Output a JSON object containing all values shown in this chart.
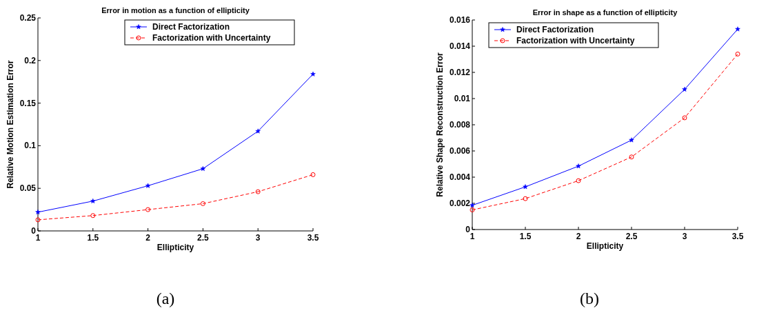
{
  "chart_data": [
    {
      "type": "line",
      "title": "Error in motion as a function of ellipticity",
      "xlabel": "Ellipticity",
      "ylabel": "Relative Motion Estimation Error",
      "x": [
        1,
        1.5,
        2,
        2.5,
        3,
        3.5
      ],
      "xlim": [
        1,
        3.5
      ],
      "xticks": [
        1,
        1.5,
        2,
        2.5,
        3,
        3.5
      ],
      "ylim": [
        0,
        0.25
      ],
      "yticks": [
        0,
        0.05,
        0.1,
        0.15,
        0.2,
        0.25
      ],
      "legend": "top right",
      "grid": false,
      "annotations": [
        "(a)"
      ],
      "series": [
        {
          "name": "Direct Factorization",
          "color": "#0000ff",
          "marker": "star",
          "line_style": "solid",
          "values": [
            0.022,
            0.035,
            0.053,
            0.073,
            0.117,
            0.184
          ]
        },
        {
          "name": "Factorization with Uncertainty",
          "color": "#ff0000",
          "marker": "circle",
          "line_style": "dashed",
          "values": [
            0.013,
            0.018,
            0.025,
            0.032,
            0.046,
            0.066
          ]
        }
      ]
    },
    {
      "type": "line",
      "title": "Error in shape as a function of ellipticity",
      "xlabel": "Ellipticity",
      "ylabel": "Relative Shape Reconstruction Error",
      "x": [
        1,
        1.5,
        2,
        2.5,
        3,
        3.5
      ],
      "xlim": [
        1,
        3.5
      ],
      "xticks": [
        1,
        1.5,
        2,
        2.5,
        3,
        3.5
      ],
      "ylim": [
        0,
        0.016
      ],
      "yticks": [
        0,
        0.002,
        0.004,
        0.006,
        0.008,
        0.01,
        0.012,
        0.014,
        0.016
      ],
      "legend": "top left",
      "grid": false,
      "annotations": [
        "(b)"
      ],
      "series": [
        {
          "name": "Direct Factorization",
          "color": "#0000ff",
          "marker": "star",
          "line_style": "solid",
          "values": [
            0.00185,
            0.00326,
            0.00484,
            0.00683,
            0.0107,
            0.0153
          ]
        },
        {
          "name": "Factorization with Uncertainty",
          "color": "#ff0000",
          "marker": "circle",
          "line_style": "dashed",
          "values": [
            0.0015,
            0.00236,
            0.00373,
            0.00554,
            0.00853,
            0.0134
          ]
        }
      ]
    }
  ]
}
